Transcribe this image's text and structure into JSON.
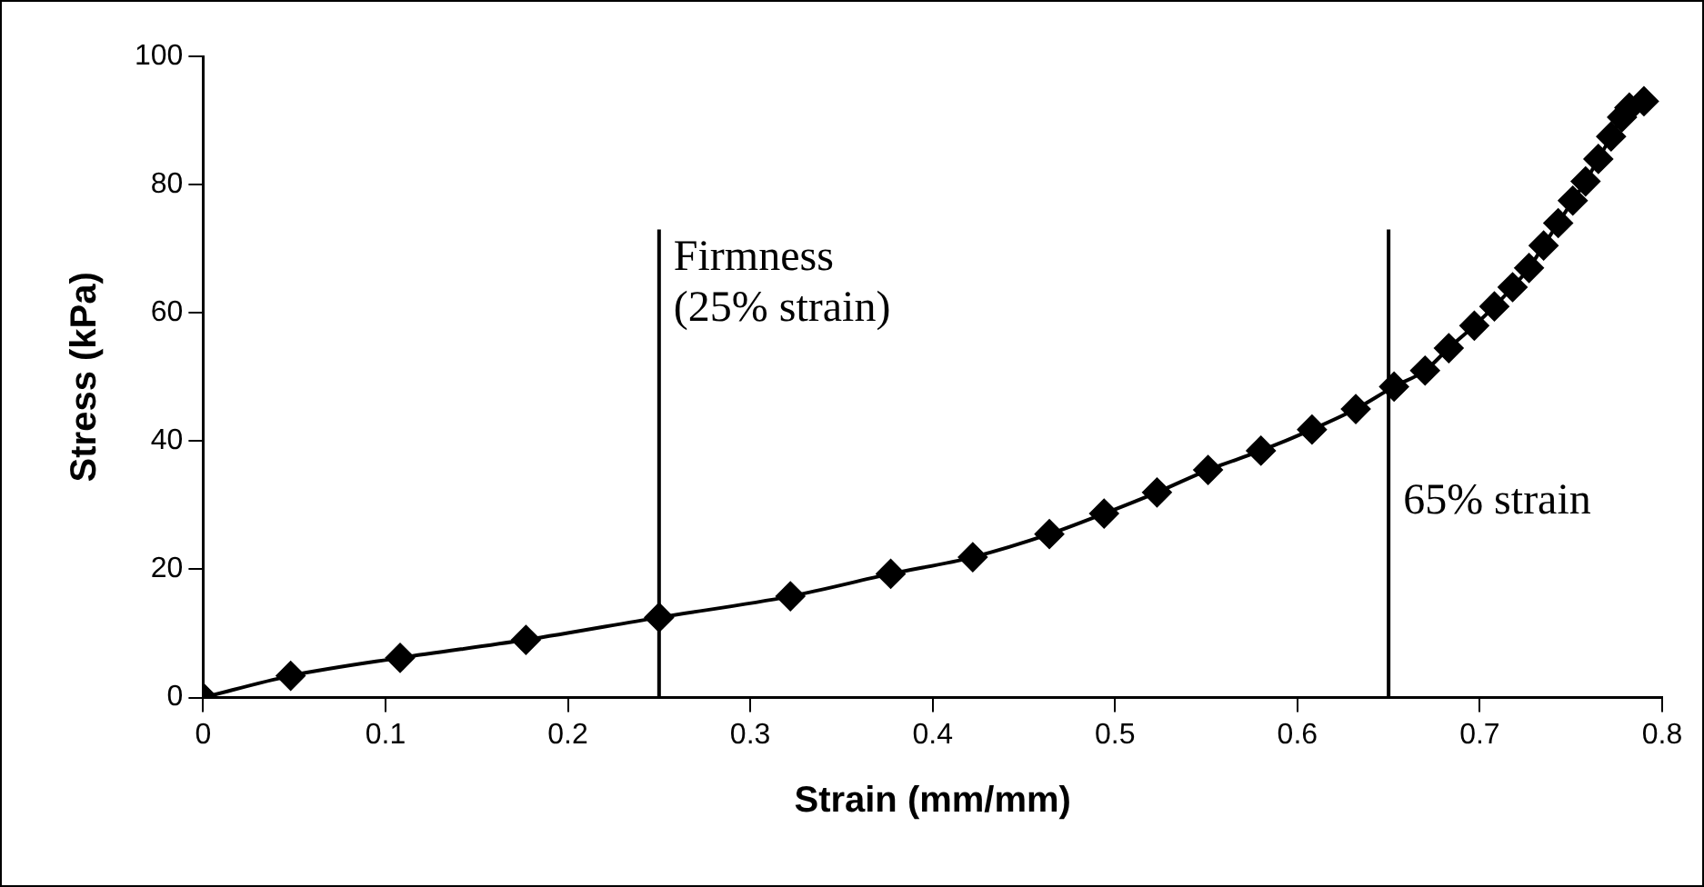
{
  "chart_data": {
    "type": "line",
    "xlabel": "Strain (mm/mm)",
    "ylabel": "Stress (kPa)",
    "x": [
      0,
      0.048,
      0.108,
      0.177,
      0.25,
      0.322,
      0.377,
      0.422,
      0.464,
      0.494,
      0.523,
      0.551,
      0.58,
      0.608,
      0.632,
      0.653,
      0.67,
      0.683,
      0.697,
      0.708,
      0.718,
      0.727,
      0.735,
      0.743,
      0.751,
      0.758,
      0.765,
      0.772,
      0.778,
      0.782,
      0.788,
      0.79
    ],
    "series": [
      {
        "color": "#000000",
        "values": [
          0,
          3.4,
          6.2,
          9,
          12.5,
          15.8,
          19.3,
          21.9,
          25.5,
          28.7,
          32,
          35.5,
          38.5,
          41.8,
          45,
          48.5,
          51,
          54.5,
          58,
          61,
          64,
          67,
          70.5,
          74,
          77.5,
          80.5,
          84,
          87.5,
          90.5,
          92,
          null,
          93
        ]
      }
    ],
    "xlim": [
      0,
      0.8
    ],
    "xticks": [
      0,
      0.1,
      0.2,
      0.3,
      0.4,
      0.5,
      0.6,
      0.7,
      0.8
    ],
    "ylim": [
      0,
      100
    ],
    "yticks": [
      0,
      20,
      40,
      60,
      80,
      100
    ],
    "ref_lines": [
      {
        "axis": "x",
        "value": 0.25,
        "label": "Firmness (25% strain)",
        "color": "#000000"
      },
      {
        "axis": "x",
        "value": 0.65,
        "label": "65% strain",
        "color": "#000000"
      }
    ],
    "marker": "diamond",
    "line_style": "solid",
    "grid": false,
    "legend": false
  }
}
